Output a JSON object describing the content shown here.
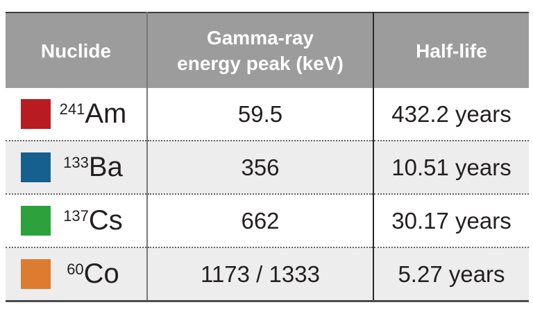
{
  "table": {
    "columns": {
      "nuclide": "Nuclide",
      "gamma_line1": "Gamma-ray",
      "gamma_line2": "energy peak (keV)",
      "half_life": "Half-life"
    },
    "rows": [
      {
        "swatch_color": "#b81c22",
        "swatch_name": "dark-red",
        "mass_number": "241",
        "symbol": "Am",
        "energy_kev": "59.5",
        "half_life": "432.2 years"
      },
      {
        "swatch_color": "#16608f",
        "swatch_name": "steel-blue",
        "mass_number": "133",
        "symbol": "Ba",
        "energy_kev": "356",
        "half_life": "10.51 years"
      },
      {
        "swatch_color": "#2da13b",
        "swatch_name": "green",
        "mass_number": "137",
        "symbol": "Cs",
        "energy_kev": "662",
        "half_life": "30.17 years"
      },
      {
        "swatch_color": "#dd7c2f",
        "swatch_name": "orange",
        "mass_number": "60",
        "symbol": "Co",
        "energy_kev": "1173 / 1333",
        "half_life": "5.27 years"
      }
    ]
  },
  "colors": {
    "header_bg": "#9c9c9c",
    "header_text": "#ffffff",
    "row_bg": "#ffffff",
    "row_alt_bg": "#ededed",
    "body_text": "#231f20",
    "divider_col1": "#787878",
    "divider_col2": "#2b2627",
    "border_top": "#3e3e3e",
    "border_bottom": "#4b4b4b",
    "dotted_separator": "#606060"
  },
  "chart_data": {
    "type": "table",
    "title": "",
    "columns": [
      "Nuclide",
      "Gamma-ray energy peak (keV)",
      "Half-life"
    ],
    "rows": [
      [
        "241Am",
        "59.5",
        "432.2 years"
      ],
      [
        "133Ba",
        "356",
        "10.51 years"
      ],
      [
        "137Cs",
        "662",
        "30.17 years"
      ],
      [
        "60Co",
        "1173 / 1333",
        "5.27 years"
      ]
    ],
    "row_swatch_colors": [
      "#b81c22",
      "#16608f",
      "#2da13b",
      "#dd7c2f"
    ]
  }
}
